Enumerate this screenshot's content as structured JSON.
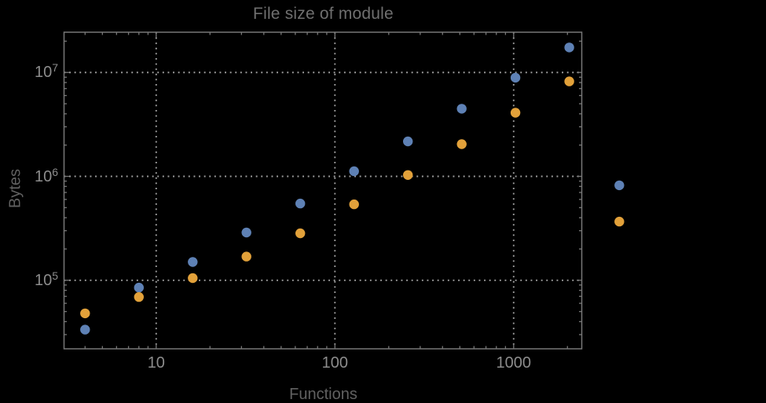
{
  "chart_data": {
    "type": "scatter",
    "title": "File size of module",
    "xlabel": "Functions",
    "ylabel": "Bytes",
    "x_scale": "log",
    "y_scale": "log",
    "xlim": [
      3.05,
      2405
    ],
    "ylim": [
      21900,
      24400000
    ],
    "grid": "dotted lines at each labeled decade, both axes",
    "legend": "none",
    "x_ticks": [
      {
        "value": 10,
        "label": "10"
      },
      {
        "value": 100,
        "label": "100"
      },
      {
        "value": 1000,
        "label": "1000"
      }
    ],
    "y_ticks": [
      {
        "value": 100000,
        "mantissa": "10",
        "exponent": "5"
      },
      {
        "value": 1000000,
        "mantissa": "10",
        "exponent": "6"
      },
      {
        "value": 10000000,
        "mantissa": "10",
        "exponent": "7"
      }
    ],
    "series": [
      {
        "id": "blue",
        "color": "#5E81B5",
        "points": [
          [
            4,
            33500
          ],
          [
            8,
            85000
          ],
          [
            16,
            150000
          ],
          [
            32,
            288000
          ],
          [
            64,
            548000
          ],
          [
            128,
            1120000
          ],
          [
            256,
            2170000
          ],
          [
            512,
            4480000
          ],
          [
            1024,
            8900000
          ],
          [
            2048,
            17400000
          ],
          [
            3900,
            820000
          ]
        ]
      },
      {
        "id": "orange",
        "color": "#E2A13A",
        "points": [
          [
            4,
            48000
          ],
          [
            8,
            69000
          ],
          [
            16,
            105000
          ],
          [
            32,
            169000
          ],
          [
            64,
            283000
          ],
          [
            128,
            538000
          ],
          [
            256,
            1030000
          ],
          [
            512,
            2040000
          ],
          [
            1024,
            4100000
          ],
          [
            2048,
            8200000
          ],
          [
            3900,
            367000
          ]
        ]
      }
    ]
  },
  "colors": {
    "background": "#000000",
    "frame": "#777777",
    "gridlines": "#9E9E9E",
    "tick_labels": "#8C8C8C",
    "title": "#6F6F6F",
    "axis_labels": "#616161"
  }
}
